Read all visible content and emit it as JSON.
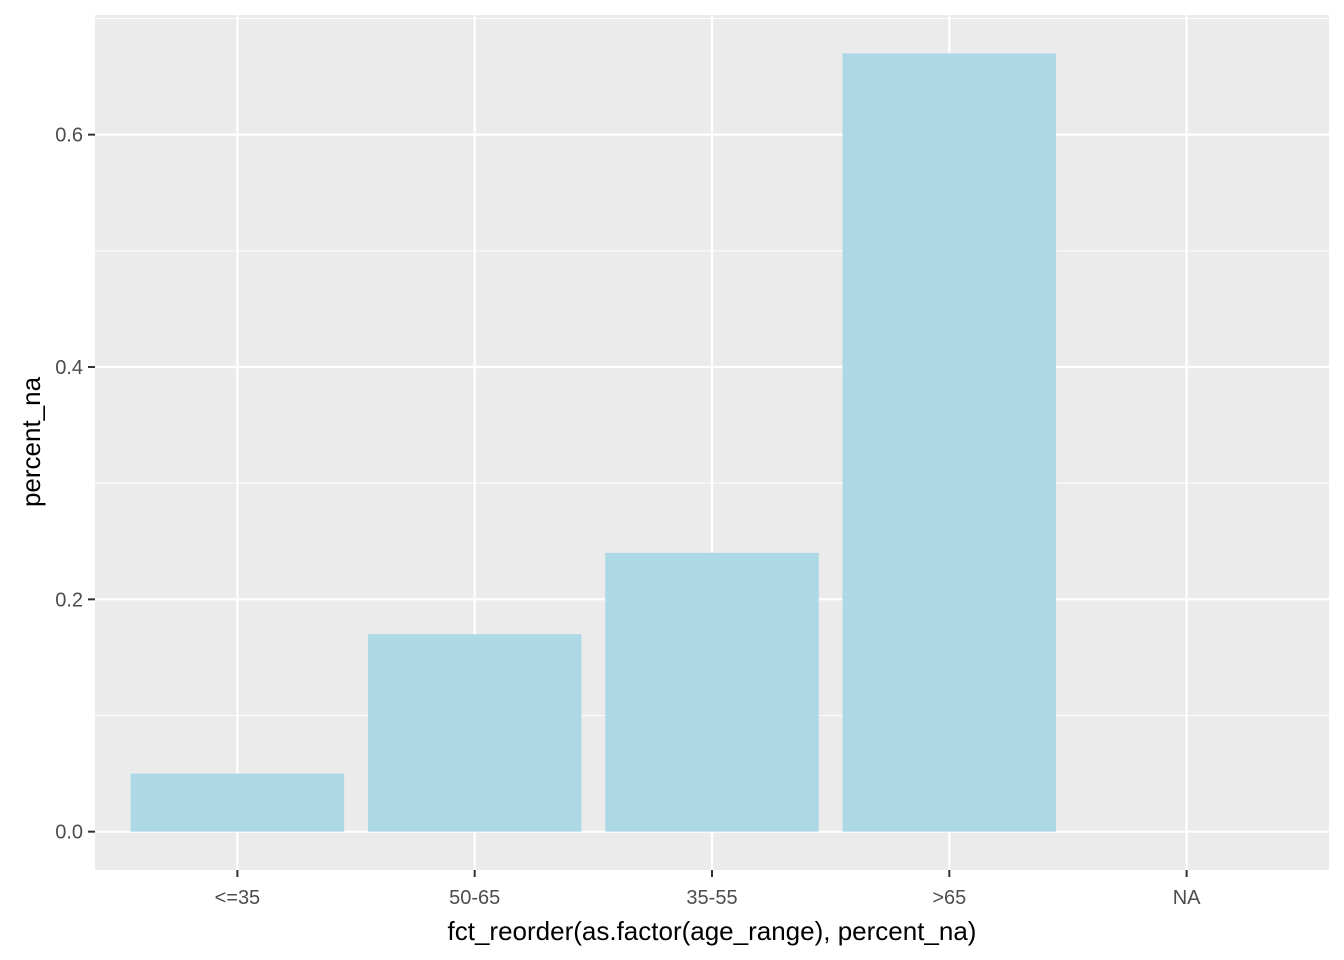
{
  "chart_data": {
    "type": "bar",
    "title": "",
    "xlabel": "fct_reorder(as.factor(age_range), percent_na)",
    "ylabel": "percent_na",
    "categories": [
      "<=35",
      "50-65",
      "35-55",
      ">65",
      "NA"
    ],
    "values": [
      0.05,
      0.17,
      0.24,
      0.67,
      0
    ],
    "ylim": [
      -0.033,
      0.703
    ],
    "yticks": [
      0.0,
      0.2,
      0.4,
      0.6
    ],
    "ytick_labels": [
      "0.0",
      "0.2",
      "0.4",
      "0.6"
    ],
    "grid": true,
    "legend": "none",
    "colors": {
      "bar": "#ADD8E6",
      "panel": "#EBEBEB",
      "grid": "#FFFFFF"
    }
  }
}
